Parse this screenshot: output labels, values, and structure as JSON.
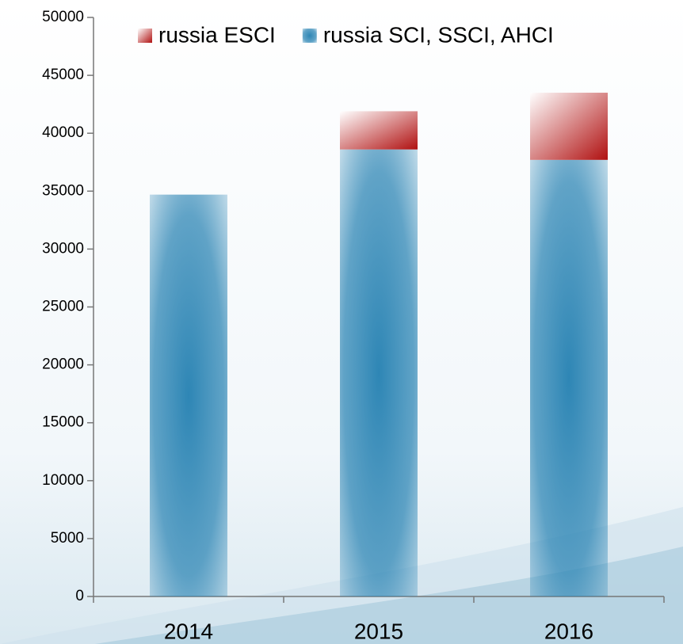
{
  "chart_data": {
    "type": "stacked_bar",
    "categories": [
      "2014",
      "2015",
      "2016"
    ],
    "series": [
      {
        "name": "russia SCI, SSCI, AHCI",
        "color": "#2e86b5",
        "values": [
          34700,
          38600,
          37700
        ]
      },
      {
        "name": "russia ESCI",
        "color": "#b01010",
        "values": [
          null,
          3300,
          5800
        ]
      }
    ],
    "legend_order": [
      1,
      0
    ],
    "ylim": [
      0,
      50000
    ],
    "yticks": [
      0,
      5000,
      10000,
      15000,
      20000,
      25000,
      30000,
      35000,
      40000,
      45000,
      50000
    ],
    "grid": false
  }
}
